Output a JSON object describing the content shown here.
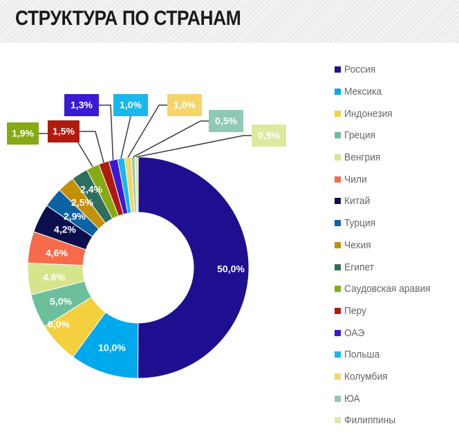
{
  "header": {
    "title": "СТРУКТУРА ПО СТРАНАМ"
  },
  "chart_data": {
    "type": "pie",
    "donut": true,
    "categories": [
      "Россия",
      "Мексика",
      "Индонезия",
      "Греция",
      "Венгрия",
      "Чили",
      "Китай",
      "Турция",
      "Чехия",
      "Египет",
      "Саудовская аравия",
      "Перу",
      "ОАЭ",
      "Польша",
      "Колумбия",
      "ЮА",
      "Филиппины"
    ],
    "values": [
      50.0,
      10.0,
      6.0,
      5.0,
      4.6,
      4.6,
      4.2,
      2.9,
      2.5,
      2.4,
      1.9,
      1.5,
      1.3,
      1.0,
      1.0,
      0.5,
      0.5
    ],
    "labels": [
      "50,0%",
      "10,0%",
      "6,0%",
      "5,0%",
      "4,6%",
      "4,6%",
      "4,2%",
      "2,9%",
      "2,5%",
      "2,4%",
      "1,9%",
      "1,5%",
      "1,3%",
      "1,0%",
      "1,0%",
      "0,5%",
      "0,5%"
    ],
    "colors": [
      "#1d0f8f",
      "#00a8ec",
      "#f4d03f",
      "#6dbf9c",
      "#d6e58b",
      "#f76b4a",
      "#0c0f4e",
      "#0b63a6",
      "#c48f00",
      "#2e6e5e",
      "#86aa12",
      "#b11b0f",
      "#3a1ad6",
      "#19b7ee",
      "#f4d568",
      "#8fc9b3",
      "#dcea9f"
    ],
    "legend_position": "right"
  }
}
